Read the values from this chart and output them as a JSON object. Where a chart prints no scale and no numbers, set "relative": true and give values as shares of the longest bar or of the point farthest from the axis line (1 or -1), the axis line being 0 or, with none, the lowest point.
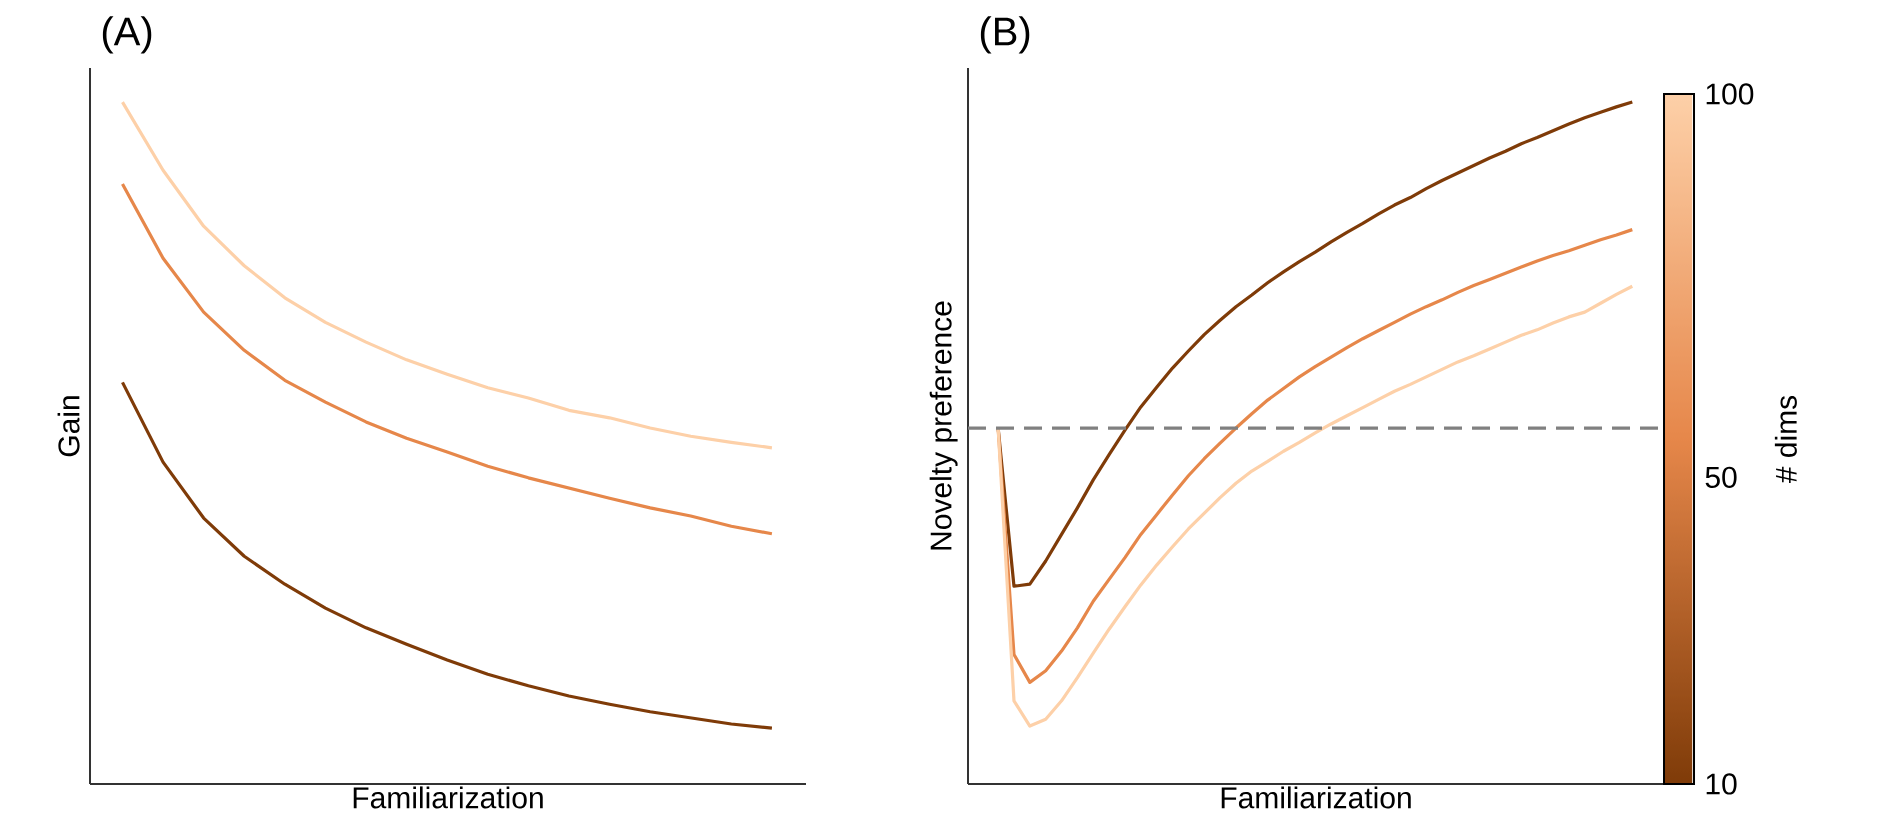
{
  "chart_data": [
    {
      "type": "line",
      "title": "(A)",
      "xlabel": "Familiarization",
      "ylabel": "Gain",
      "relative": true,
      "tick_labels": false,
      "categories": [
        null,
        null,
        null,
        null,
        null,
        null,
        null,
        null,
        null,
        null,
        null,
        null,
        null,
        null,
        null,
        null,
        null
      ],
      "series": [
        {
          "color": "#7f3b08",
          "values": [
            0.589,
            0.472,
            0.39,
            0.334,
            0.293,
            0.258,
            0.229,
            0.205,
            0.182,
            0.161,
            0.144,
            0.129,
            0.117,
            0.106,
            0.097,
            0.088,
            0.082
          ]
        },
        {
          "color": "#e6874a",
          "values": [
            0.88,
            0.771,
            0.692,
            0.636,
            0.592,
            0.56,
            0.531,
            0.507,
            0.487,
            0.466,
            0.449,
            0.434,
            0.419,
            0.405,
            0.393,
            0.378,
            0.367
          ]
        },
        {
          "color": "#fdd0a8",
          "values": [
            1.0,
            0.9,
            0.818,
            0.76,
            0.713,
            0.677,
            0.648,
            0.622,
            0.601,
            0.581,
            0.566,
            0.548,
            0.537,
            0.522,
            0.51,
            0.501,
            0.493
          ]
        }
      ]
    },
    {
      "type": "line",
      "title": "(B)",
      "xlabel": "Familiarization",
      "ylabel": "Novelty preference",
      "relative": true,
      "tick_labels": false,
      "clabel": "# dims",
      "clim": [
        10,
        100
      ],
      "cticks": [
        10,
        50,
        100
      ],
      "categories": [
        null,
        null,
        null,
        null,
        null,
        null,
        null,
        null,
        null,
        null,
        null,
        null,
        null,
        null,
        null,
        null,
        null,
        null,
        null,
        null,
        null,
        null,
        null,
        null,
        null,
        null,
        null,
        null,
        null,
        null,
        null,
        null,
        null,
        null,
        null,
        null,
        null,
        null,
        null,
        null,
        null
      ],
      "series": [
        {
          "color": "#7f3b08",
          "values": [
            0.522,
            0.29,
            0.293,
            0.327,
            0.366,
            0.405,
            0.446,
            0.483,
            0.519,
            0.553,
            0.582,
            0.61,
            0.635,
            0.659,
            0.68,
            0.7,
            0.717,
            0.735,
            0.751,
            0.766,
            0.78,
            0.795,
            0.809,
            0.822,
            0.836,
            0.849,
            0.86,
            0.873,
            0.885,
            0.896,
            0.907,
            0.918,
            0.928,
            0.939,
            0.948,
            0.958,
            0.968,
            0.977,
            0.985,
            0.993,
            1.0
          ]
        },
        {
          "color": "#e6874a",
          "values": [
            0.522,
            0.19,
            0.149,
            0.166,
            0.195,
            0.229,
            0.268,
            0.3,
            0.332,
            0.366,
            0.395,
            0.424,
            0.452,
            0.477,
            0.5,
            0.522,
            0.543,
            0.563,
            0.58,
            0.597,
            0.612,
            0.626,
            0.64,
            0.653,
            0.665,
            0.677,
            0.689,
            0.7,
            0.71,
            0.721,
            0.731,
            0.74,
            0.749,
            0.758,
            0.767,
            0.775,
            0.782,
            0.79,
            0.798,
            0.805,
            0.813
          ]
        },
        {
          "color": "#fdd0a8",
          "values": [
            0.522,
            0.122,
            0.085,
            0.095,
            0.122,
            0.156,
            0.192,
            0.227,
            0.26,
            0.292,
            0.321,
            0.348,
            0.374,
            0.397,
            0.42,
            0.441,
            0.459,
            0.473,
            0.488,
            0.501,
            0.515,
            0.528,
            0.54,
            0.552,
            0.564,
            0.576,
            0.586,
            0.597,
            0.608,
            0.619,
            0.628,
            0.638,
            0.648,
            0.658,
            0.666,
            0.676,
            0.685,
            0.692,
            0.705,
            0.718,
            0.73
          ]
        }
      ],
      "ref_lines": [
        {
          "axis": "y",
          "value": 0.522,
          "color": "#808080",
          "line_style": "dashed"
        }
      ]
    }
  ]
}
